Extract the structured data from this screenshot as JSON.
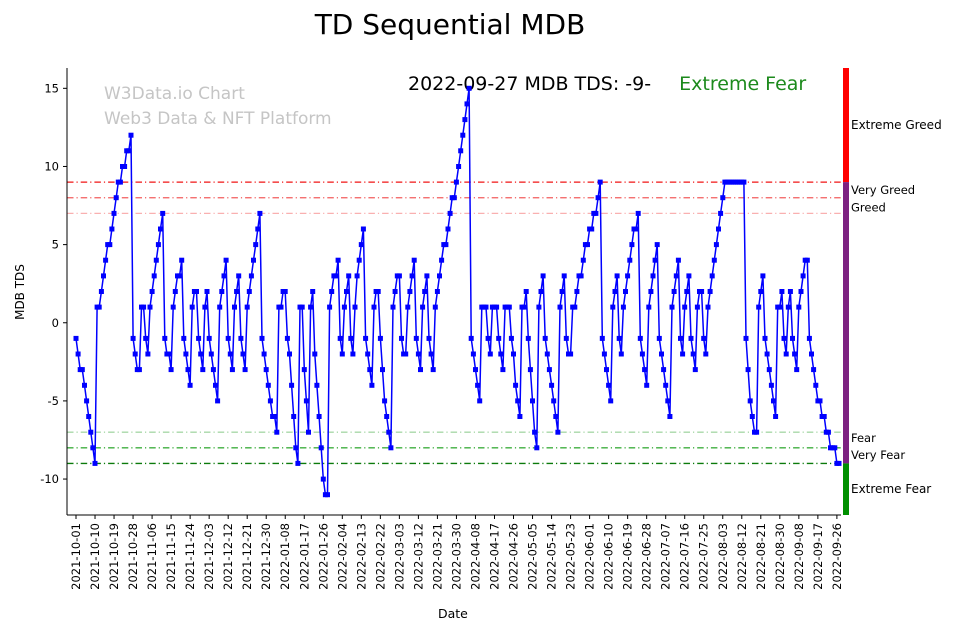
{
  "title": "TD Sequential MDB",
  "watermark": {
    "line1": "W3Data.io Chart",
    "line2": "Web3 Data & NFT Platform"
  },
  "annotation": {
    "date_text": "2022-09-27 MDB TDS: -9-",
    "status_text": "Extreme Fear",
    "status_color": "#1c8a1c"
  },
  "chart_data": {
    "type": "line",
    "title": "TD Sequential MDB",
    "xlabel": "Date",
    "ylabel": "MDB TDS",
    "ylim": [
      -12.3,
      16.3
    ],
    "yticks": [
      -10,
      -5,
      0,
      5,
      10,
      15
    ],
    "line_color": "#0000ff",
    "marker": "square",
    "grid": false,
    "x_tick_every": 9,
    "x_tick_labels": [
      "2021-10-01",
      "2021-10-10",
      "2021-10-19",
      "2021-10-28",
      "2021-11-06",
      "2021-11-15",
      "2021-11-24",
      "2021-12-03",
      "2021-12-12",
      "2021-12-21",
      "2021-12-30",
      "2022-01-08",
      "2022-01-17",
      "2022-01-26",
      "2022-02-04",
      "2022-02-13",
      "2022-02-22",
      "2022-03-03",
      "2022-03-12",
      "2022-03-21",
      "2022-03-30",
      "2022-04-08",
      "2022-04-17",
      "2022-04-26",
      "2022-05-05",
      "2022-05-14",
      "2022-05-23",
      "2022-06-01",
      "2022-06-10",
      "2022-06-19",
      "2022-06-28",
      "2022-07-07",
      "2022-07-16",
      "2022-07-25",
      "2022-08-03",
      "2022-08-12",
      "2022-08-21",
      "2022-08-30",
      "2022-09-08",
      "2022-09-17",
      "2022-09-26"
    ],
    "values": [
      -1,
      -2,
      -3,
      -3,
      -4,
      -5,
      -6,
      -7,
      -8,
      -9,
      1,
      1,
      2,
      3,
      4,
      5,
      5,
      6,
      7,
      8,
      9,
      9,
      10,
      10,
      11,
      11,
      12,
      -1,
      -2,
      -3,
      -3,
      1,
      1,
      -1,
      -2,
      1,
      2,
      3,
      4,
      5,
      6,
      7,
      -1,
      -2,
      -2,
      -3,
      1,
      2,
      3,
      3,
      4,
      -1,
      -2,
      -3,
      -4,
      1,
      2,
      2,
      -1,
      -2,
      -3,
      1,
      2,
      -1,
      -2,
      -3,
      -4,
      -5,
      1,
      2,
      3,
      4,
      -1,
      -2,
      -3,
      1,
      2,
      3,
      -1,
      -2,
      -3,
      1,
      2,
      3,
      4,
      5,
      6,
      7,
      -1,
      -2,
      -3,
      -4,
      -5,
      -6,
      -6,
      -7,
      1,
      1,
      2,
      2,
      -1,
      -2,
      -4,
      -6,
      -8,
      -9,
      1,
      1,
      -3,
      -5,
      -7,
      1,
      2,
      -2,
      -4,
      -6,
      -8,
      -10,
      -11,
      -11,
      1,
      2,
      3,
      3,
      4,
      -1,
      -2,
      1,
      2,
      3,
      -1,
      -2,
      1,
      3,
      4,
      5,
      6,
      -1,
      -2,
      -3,
      -4,
      1,
      2,
      2,
      -1,
      -3,
      -5,
      -6,
      -7,
      -8,
      1,
      2,
      3,
      3,
      -1,
      -2,
      -2,
      1,
      2,
      3,
      4,
      -1,
      -2,
      -3,
      1,
      2,
      3,
      -1,
      -2,
      -3,
      1,
      2,
      3,
      4,
      5,
      5,
      6,
      7,
      8,
      8,
      9,
      10,
      11,
      12,
      13,
      14,
      15,
      -1,
      -2,
      -3,
      -4,
      -5,
      1,
      1,
      1,
      -1,
      -2,
      1,
      1,
      1,
      -1,
      -2,
      -3,
      1,
      1,
      1,
      -1,
      -2,
      -4,
      -5,
      -6,
      1,
      1,
      2,
      -1,
      -3,
      -5,
      -7,
      -8,
      1,
      2,
      3,
      -1,
      -2,
      -3,
      -4,
      -5,
      -6,
      -7,
      1,
      2,
      3,
      -1,
      -2,
      -2,
      1,
      1,
      2,
      3,
      3,
      4,
      5,
      5,
      6,
      6,
      7,
      7,
      8,
      9,
      -1,
      -2,
      -3,
      -4,
      -5,
      1,
      2,
      3,
      -1,
      -2,
      1,
      2,
      3,
      4,
      5,
      6,
      6,
      7,
      -1,
      -2,
      -3,
      -4,
      1,
      2,
      3,
      4,
      5,
      -1,
      -2,
      -3,
      -4,
      -5,
      -6,
      1,
      2,
      3,
      4,
      -1,
      -2,
      1,
      2,
      3,
      -1,
      -2,
      -3,
      1,
      2,
      2,
      -1,
      -2,
      1,
      2,
      3,
      4,
      5,
      6,
      7,
      8,
      9,
      9,
      9,
      9,
      9,
      9,
      9,
      9,
      9,
      9,
      -1,
      -3,
      -5,
      -6,
      -7,
      -7,
      1,
      2,
      3,
      -1,
      -2,
      -3,
      -4,
      -5,
      -6,
      1,
      1,
      2,
      -1,
      -2,
      1,
      2,
      -1,
      -2,
      -3,
      1,
      2,
      3,
      4,
      4,
      -1,
      -2,
      -3,
      -4,
      -5,
      -5,
      -6,
      -6,
      -7,
      -7,
      -8,
      -8,
      -8,
      -9,
      -9
    ],
    "thresholds": [
      {
        "value": 9,
        "color": "#f01414",
        "label": "Very Greed",
        "label_color": "#e85555",
        "label_dy": 12
      },
      {
        "value": 8,
        "color": "#f25d5d",
        "label": "",
        "label_color": "#f25d5d",
        "label_dy": 0
      },
      {
        "value": 7,
        "color": "#f9b0b0",
        "label": "Greed",
        "label_color": "#f4a9a9",
        "label_dy": -2
      },
      {
        "value": -7,
        "color": "#a8d8a8",
        "label": "Fear",
        "label_color": "#9fd49f",
        "label_dy": 10
      },
      {
        "value": -8,
        "color": "#3fae3f",
        "label": "Very Fear",
        "label_color": "#2e9e2e",
        "label_dy": 11
      },
      {
        "value": -9,
        "color": "#0b7a0b",
        "label": "",
        "label_color": "#0b7a0b",
        "label_dy": 0
      }
    ],
    "right_bar": {
      "segments": [
        {
          "from": 16.3,
          "to": 9,
          "color": "#ff0000",
          "label": "Extreme Greed",
          "label_color": "#ff0000"
        },
        {
          "from": 9,
          "to": -9,
          "color": "#7d2181",
          "label": "",
          "label_color": "#7d2181"
        },
        {
          "from": -9,
          "to": -12.3,
          "color": "#009000",
          "label": "Extreme Fear",
          "label_color": "#007000"
        }
      ]
    }
  }
}
